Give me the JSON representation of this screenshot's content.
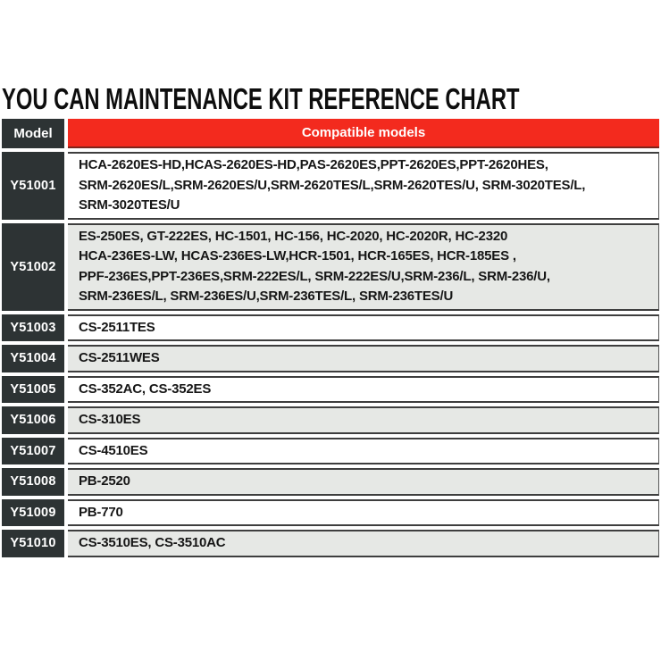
{
  "title": "YOU CAN MAINTENANCE KIT REFERENCE CHART",
  "colors": {
    "header_red": "#f32a1e",
    "header_red_bottom_edge": "#7e241b",
    "model_cell_dark": "#2d3334",
    "row_shaded_gray": "#e6e8e5",
    "row_plain_white": "#ffffff",
    "row_border_dark": "#3e3e3e",
    "header_text_white": "#ffffff",
    "body_text": "#161616"
  },
  "table": {
    "columns": [
      {
        "label": "Model"
      },
      {
        "label": "Compatible models"
      }
    ],
    "rows": [
      {
        "model": "Y51001",
        "compatible": [
          "HCA-2620ES-HD,HCAS-2620ES-HD,PAS-2620ES,PPT-2620ES,PPT-2620HES,",
          "SRM-2620ES/L,SRM-2620ES/U,SRM-2620TES/L,SRM-2620TES/U, SRM-3020TES/L,",
          "SRM-3020TES/U"
        ]
      },
      {
        "model": "Y51002",
        "compatible": [
          "ES-250ES, GT-222ES, HC-1501, HC-156, HC-2020, HC-2020R, HC-2320",
          "HCA-236ES-LW, HCAS-236ES-LW,HCR-1501, HCR-165ES, HCR-185ES ,",
          "PPF-236ES,PPT-236ES,SRM-222ES/L, SRM-222ES/U,SRM-236/L, SRM-236/U,",
          "SRM-236ES/L, SRM-236ES/U,SRM-236TES/L, SRM-236TES/U"
        ]
      },
      {
        "model": "Y51003",
        "compatible": "CS-2511TES"
      },
      {
        "model": "Y51004",
        "compatible": "CS-2511WES"
      },
      {
        "model": "Y51005",
        "compatible": "CS-352AC, CS-352ES"
      },
      {
        "model": "Y51006",
        "compatible": "CS-310ES"
      },
      {
        "model": "Y51007",
        "compatible": "CS-4510ES"
      },
      {
        "model": "Y51008",
        "compatible": "PB-2520"
      },
      {
        "model": "Y51009",
        "compatible": "PB-770"
      },
      {
        "model": "Y51010",
        "compatible": "CS-3510ES, CS-3510AC"
      }
    ]
  }
}
